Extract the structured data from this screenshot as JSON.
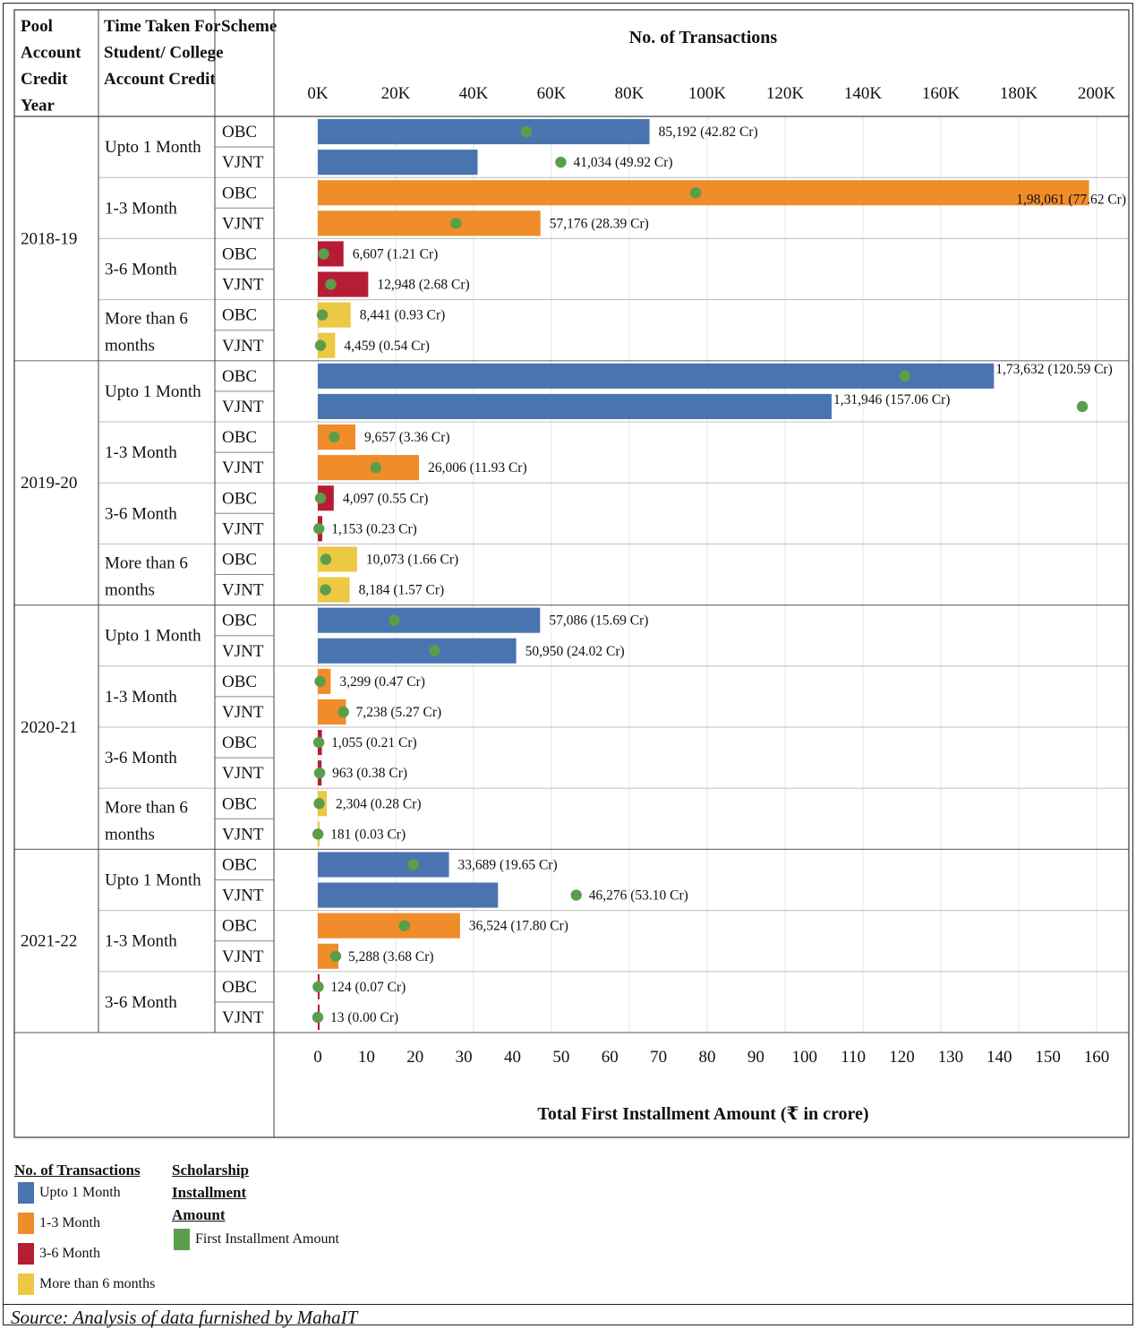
{
  "chart_data": {
    "type": "bar",
    "orientation": "horizontal",
    "title": "No. of Transactions",
    "x2label": "Total First Installment Amount (₹ in crore)",
    "xlim": [
      0,
      200000
    ],
    "x_ticks": [
      "0K",
      "20K",
      "40K",
      "60K",
      "80K",
      "100K",
      "120K",
      "140K",
      "160K",
      "180K",
      "200K"
    ],
    "x2lim": [
      0,
      160
    ],
    "x2_ticks": [
      "0",
      "10",
      "20",
      "30",
      "40",
      "50",
      "60",
      "70",
      "80",
      "90",
      "100",
      "110",
      "120",
      "130",
      "140",
      "150",
      "160"
    ],
    "grid": true,
    "columns": [
      "Pool Account Credit Year",
      "Time Taken For Student/ College Account Credit",
      "Scheme"
    ],
    "years": [
      {
        "year": "2018-19",
        "groups": [
          {
            "period": "Upto 1 Month",
            "rows": [
              {
                "scheme": "OBC",
                "transactions": 85192,
                "amount": 42.82,
                "label": "85,192 (42.82 Cr)"
              },
              {
                "scheme": "VJNT",
                "transactions": 41034,
                "amount": 49.92,
                "label": "41,034 (49.92 Cr)"
              }
            ]
          },
          {
            "period": "1-3 Month",
            "rows": [
              {
                "scheme": "OBC",
                "transactions": 198061,
                "amount": 77.62,
                "label": "1,98,061 (77.62 Cr)"
              },
              {
                "scheme": "VJNT",
                "transactions": 57176,
                "amount": 28.39,
                "label": "57,176 (28.39 Cr)"
              }
            ]
          },
          {
            "period": "3-6 Month",
            "rows": [
              {
                "scheme": "OBC",
                "transactions": 6607,
                "amount": 1.21,
                "label": "6,607 (1.21 Cr)"
              },
              {
                "scheme": "VJNT",
                "transactions": 12948,
                "amount": 2.68,
                "label": "12,948 (2.68 Cr)"
              }
            ]
          },
          {
            "period": "More than 6 months",
            "rows": [
              {
                "scheme": "OBC",
                "transactions": 8441,
                "amount": 0.93,
                "label": "8,441 (0.93 Cr)"
              },
              {
                "scheme": "VJNT",
                "transactions": 4459,
                "amount": 0.54,
                "label": "4,459 (0.54 Cr)"
              }
            ]
          }
        ]
      },
      {
        "year": "2019-20",
        "groups": [
          {
            "period": "Upto 1 Month",
            "rows": [
              {
                "scheme": "OBC",
                "transactions": 173632,
                "amount": 120.59,
                "label": "1,73,632 (120.59 Cr)"
              },
              {
                "scheme": "VJNT",
                "transactions": 131946,
                "amount": 157.06,
                "label": "1,31,946 (157.06 Cr)"
              }
            ]
          },
          {
            "period": "1-3 Month",
            "rows": [
              {
                "scheme": "OBC",
                "transactions": 9657,
                "amount": 3.36,
                "label": "9,657 (3.36 Cr)"
              },
              {
                "scheme": "VJNT",
                "transactions": 26006,
                "amount": 11.93,
                "label": "26,006 (11.93 Cr)"
              }
            ]
          },
          {
            "period": "3-6 Month",
            "rows": [
              {
                "scheme": "OBC",
                "transactions": 4097,
                "amount": 0.55,
                "label": "4,097 (0.55 Cr)"
              },
              {
                "scheme": "VJNT",
                "transactions": 1153,
                "amount": 0.23,
                "label": "1,153 (0.23 Cr)"
              }
            ]
          },
          {
            "period": "More than 6 months",
            "rows": [
              {
                "scheme": "OBC",
                "transactions": 10073,
                "amount": 1.66,
                "label": "10,073 (1.66 Cr)"
              },
              {
                "scheme": "VJNT",
                "transactions": 8184,
                "amount": 1.57,
                "label": "8,184 (1.57 Cr)"
              }
            ]
          }
        ]
      },
      {
        "year": "2020-21",
        "groups": [
          {
            "period": "Upto 1 Month",
            "rows": [
              {
                "scheme": "OBC",
                "transactions": 57086,
                "amount": 15.69,
                "label": "57,086 (15.69 Cr)"
              },
              {
                "scheme": "VJNT",
                "transactions": 50950,
                "amount": 24.02,
                "label": "50,950 (24.02 Cr)"
              }
            ]
          },
          {
            "period": "1-3 Month",
            "rows": [
              {
                "scheme": "OBC",
                "transactions": 3299,
                "amount": 0.47,
                "label": "3,299 (0.47 Cr)"
              },
              {
                "scheme": "VJNT",
                "transactions": 7238,
                "amount": 5.27,
                "label": "7,238 (5.27 Cr)"
              }
            ]
          },
          {
            "period": "3-6 Month",
            "rows": [
              {
                "scheme": "OBC",
                "transactions": 1055,
                "amount": 0.21,
                "label": "1,055 (0.21 Cr)"
              },
              {
                "scheme": "VJNT",
                "transactions": 963,
                "amount": 0.38,
                "label": "963 (0.38 Cr)"
              }
            ]
          },
          {
            "period": "More than 6 months",
            "rows": [
              {
                "scheme": "OBC",
                "transactions": 2304,
                "amount": 0.28,
                "label": "2,304 (0.28 Cr)"
              },
              {
                "scheme": "VJNT",
                "transactions": 181,
                "amount": 0.03,
                "label": "181 (0.03 Cr)"
              }
            ]
          }
        ]
      },
      {
        "year": "2021-22",
        "groups": [
          {
            "period": "Upto 1 Month",
            "rows": [
              {
                "scheme": "OBC",
                "transactions": 33689,
                "amount": 19.65,
                "label": "33,689 (19.65 Cr)"
              },
              {
                "scheme": "VJNT",
                "transactions": 46276,
                "amount": 53.1,
                "label": "46,276 (53.10 Cr)"
              }
            ]
          },
          {
            "period": "1-3 Month",
            "rows": [
              {
                "scheme": "OBC",
                "transactions": 36524,
                "amount": 17.8,
                "label": "36,524 (17.80 Cr)"
              },
              {
                "scheme": "VJNT",
                "transactions": 5288,
                "amount": 3.68,
                "label": "5,288 (3.68 Cr)"
              }
            ]
          },
          {
            "period": "3-6 Month",
            "rows": [
              {
                "scheme": "OBC",
                "transactions": 124,
                "amount": 0.07,
                "label": "124 (0.07 Cr)"
              },
              {
                "scheme": "VJNT",
                "transactions": 13,
                "amount": 0.0,
                "label": "13 (0.00 Cr)"
              }
            ]
          }
        ]
      }
    ],
    "period_colors": {
      "Upto 1 Month": "#4a74b0",
      "1-3 Month": "#f08c2a",
      "3-6 Month": "#b71c35",
      "More than 6 months": "#edc843"
    },
    "marker_color": "#5a9e4b"
  },
  "legend": {
    "transactions_title": "No. of Transactions",
    "items": [
      "Upto 1 Month",
      "1-3 Month",
      "3-6 Month",
      "More than 6 months"
    ],
    "amount_title_lines": [
      "Scholarship",
      "Installment",
      "Amount"
    ],
    "amount_item": "First Installment Amount"
  },
  "source": "Source: Analysis of data furnished by MahaIT"
}
